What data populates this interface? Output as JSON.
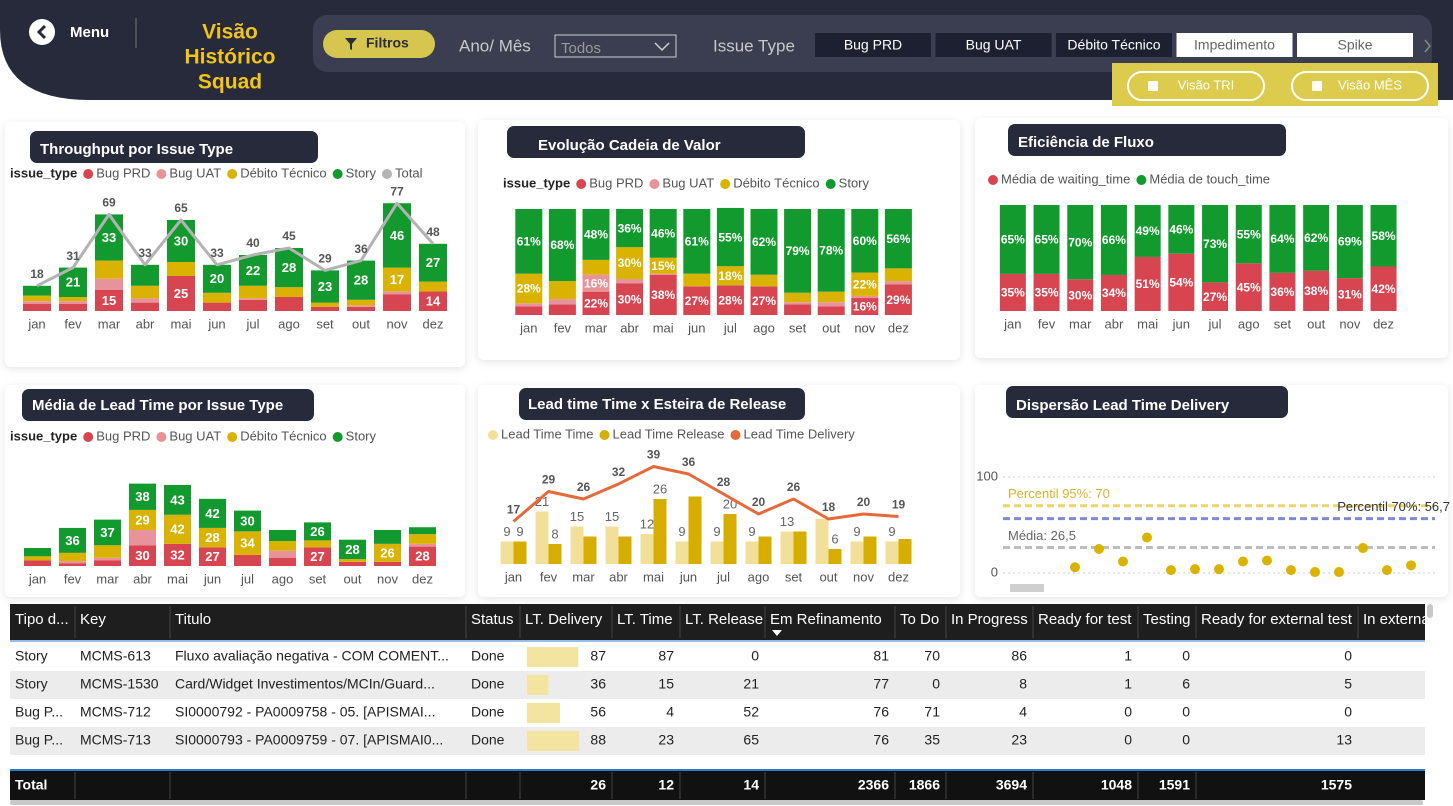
{
  "header": {
    "menu": "Menu",
    "title": [
      "Visão",
      "Histórico",
      "Squad"
    ],
    "filters": "Filtros",
    "period_label": "Ano/ Mês",
    "period_value": "Todos",
    "issue_type_label": "Issue Type",
    "issue_types": [
      "Bug PRD",
      "Bug UAT",
      "Débito Técnico",
      "Impedimento",
      "Spike"
    ],
    "issue_types_selected": [
      true,
      true,
      true,
      false,
      false
    ],
    "views": [
      "Visão TRI",
      "Visão MÊS"
    ]
  },
  "chart_data": [
    {
      "type": "bar",
      "stacked": true,
      "title": "Throughput por Issue Type",
      "legend_title": "issue_type",
      "categories": [
        "jan",
        "fev",
        "mar",
        "abr",
        "mai",
        "jun",
        "jul",
        "ago",
        "set",
        "out",
        "nov",
        "dez"
      ],
      "ylim": [
        0,
        80
      ],
      "series": [
        {
          "name": "Bug PRD",
          "color": "#d64550",
          "values": [
            5,
            5,
            15,
            6,
            25,
            6,
            8,
            10,
            3,
            3,
            12,
            14
          ],
          "value_labels": [
            null,
            null,
            "15",
            null,
            "25",
            null,
            null,
            null,
            null,
            null,
            null,
            "14"
          ]
        },
        {
          "name": "Bug UAT",
          "color": "#e8939b",
          "values": [
            2,
            2,
            8,
            3,
            0,
            0,
            1,
            0,
            0,
            1,
            2,
            0
          ]
        },
        {
          "name": "Débito Técnico",
          "color": "#d9b300",
          "values": [
            4,
            3,
            13,
            9,
            10,
            7,
            9,
            7,
            3,
            4,
            17,
            7
          ],
          "value_labels": [
            null,
            null,
            null,
            null,
            null,
            null,
            null,
            null,
            null,
            null,
            "17",
            null
          ]
        },
        {
          "name": "Story",
          "color": "#139a2e",
          "values": [
            7,
            21,
            33,
            15,
            30,
            20,
            22,
            28,
            23,
            28,
            46,
            27
          ],
          "value_labels": [
            null,
            "21",
            "33",
            null,
            "30",
            "20",
            "22",
            "28",
            "23",
            "28",
            "46",
            "27"
          ]
        },
        {
          "name": "Total",
          "color": "#b3b3b3",
          "type": "line",
          "show_labels": true,
          "values": [
            18,
            31,
            69,
            33,
            65,
            33,
            40,
            45,
            29,
            36,
            77,
            48
          ]
        }
      ]
    },
    {
      "type": "bar",
      "stacked": true,
      "title": "Evolução Cadeia de Valor",
      "legend_title": "issue_type",
      "categories": [
        "jan",
        "fev",
        "mar",
        "abr",
        "mai",
        "jun",
        "jul",
        "ago",
        "set",
        "out",
        "nov",
        "dez"
      ],
      "ylim": [
        0,
        100
      ],
      "series": [
        {
          "name": "Bug PRD",
          "color": "#d64550",
          "values": [
            8,
            10,
            22,
            30,
            38,
            27,
            28,
            27,
            10,
            8,
            16,
            29
          ],
          "value_labels": [
            null,
            null,
            "22%",
            "30%",
            "38%",
            "27%",
            "28%",
            "27%",
            null,
            null,
            "16%",
            "29%"
          ]
        },
        {
          "name": "Bug UAT",
          "color": "#e8939b",
          "values": [
            3,
            5,
            16,
            4,
            1,
            0,
            0,
            0,
            2,
            4,
            2,
            3
          ],
          "value_labels": [
            null,
            null,
            "16%",
            null,
            null,
            null,
            null,
            null,
            null,
            null,
            null,
            null
          ]
        },
        {
          "name": "Débito Técnico",
          "color": "#d9b300",
          "values": [
            28,
            17,
            14,
            30,
            15,
            12,
            18,
            11,
            9,
            10,
            22,
            12
          ],
          "value_labels": [
            "28%",
            null,
            null,
            "30%",
            "15%",
            null,
            "18%",
            null,
            null,
            null,
            "22%",
            null
          ]
        },
        {
          "name": "Story",
          "color": "#139a2e",
          "values": [
            61,
            68,
            48,
            36,
            46,
            61,
            55,
            62,
            79,
            78,
            60,
            56
          ],
          "value_labels": [
            "61%",
            "68%",
            "48%",
            "36%",
            "46%",
            "61%",
            "55%",
            "62%",
            "79%",
            "78%",
            "60%",
            "56%"
          ]
        }
      ]
    },
    {
      "type": "bar",
      "stacked": true,
      "title": "Eficiência de Fluxo",
      "categories": [
        "jan",
        "fev",
        "mar",
        "abr",
        "mai",
        "jun",
        "jul",
        "ago",
        "set",
        "out",
        "nov",
        "dez"
      ],
      "ylim": [
        0,
        100
      ],
      "series": [
        {
          "name": "Média de waiting_time",
          "color": "#d64550",
          "values": [
            35,
            35,
            30,
            34,
            51,
            54,
            27,
            45,
            36,
            38,
            31,
            42
          ],
          "value_labels": [
            "35%",
            "35%",
            "30%",
            "34%",
            "51%",
            "54%",
            "27%",
            "45%",
            "36%",
            "38%",
            "31%",
            "42%"
          ]
        },
        {
          "name": "Média de touch_time",
          "color": "#139a2e",
          "values": [
            65,
            65,
            70,
            66,
            49,
            46,
            73,
            55,
            64,
            62,
            69,
            58
          ],
          "value_labels": [
            "65%",
            "65%",
            "70%",
            "66%",
            "49%",
            "46%",
            "73%",
            "55%",
            "64%",
            "62%",
            "69%",
            "58%"
          ]
        }
      ]
    },
    {
      "type": "bar",
      "stacked": true,
      "title": "Média de Lead Time por Issue Type",
      "legend_title": "issue_type",
      "categories": [
        "jan",
        "fev",
        "mar",
        "abr",
        "mai",
        "jun",
        "jul",
        "ago",
        "set",
        "out",
        "nov",
        "dez"
      ],
      "ylim": [
        0,
        130
      ],
      "series": [
        {
          "name": "Bug PRD",
          "color": "#d64550",
          "values": [
            8,
            4,
            8,
            30,
            32,
            27,
            16,
            12,
            27,
            6,
            6,
            28
          ],
          "value_labels": [
            null,
            null,
            null,
            "30",
            "32",
            "27",
            null,
            null,
            "27",
            null,
            null,
            "28"
          ]
        },
        {
          "name": "Bug UAT",
          "color": "#e8939b",
          "values": [
            0,
            3,
            4,
            22,
            0,
            0,
            0,
            10,
            0,
            0,
            0,
            4
          ]
        },
        {
          "name": "Débito Técnico",
          "color": "#d9b300",
          "values": [
            6,
            12,
            18,
            29,
            42,
            28,
            34,
            14,
            10,
            4,
            26,
            14
          ],
          "value_labels": [
            null,
            null,
            null,
            "29",
            "42",
            "28",
            "34",
            null,
            null,
            null,
            "26",
            null
          ]
        },
        {
          "name": "Story",
          "color": "#139a2e",
          "values": [
            12,
            36,
            37,
            38,
            43,
            42,
            30,
            16,
            26,
            28,
            20,
            10
          ],
          "value_labels": [
            null,
            "36",
            "37",
            "38",
            "43",
            "42",
            "30",
            null,
            "26",
            "28",
            null,
            null
          ]
        }
      ]
    },
    {
      "type": "bar",
      "stacked": false,
      "title": "Lead time Time x Esteira de Release",
      "categories": [
        "jan",
        "fev",
        "mar",
        "abr",
        "mai",
        "jun",
        "jul",
        "ago",
        "set",
        "out",
        "nov",
        "dez"
      ],
      "ylim": [
        0,
        40
      ],
      "series": [
        {
          "name": "Lead Time Time",
          "color": "#f2e09a",
          "values": [
            9,
            21,
            15,
            15,
            12,
            9,
            9,
            9,
            13,
            18,
            9,
            9
          ],
          "value_labels": [
            "9",
            "21",
            "15",
            "15",
            "12",
            "9",
            "9",
            "9",
            "13",
            null,
            "9",
            "9"
          ]
        },
        {
          "name": "Lead Time Release",
          "color": "#d6ae00",
          "values": [
            9,
            8,
            11,
            11,
            26,
            27,
            20,
            11,
            13,
            6,
            11,
            10
          ],
          "value_labels": [
            "9",
            "8",
            null,
            null,
            "26",
            null,
            "20",
            null,
            null,
            "6",
            null,
            null
          ]
        },
        {
          "name": "Lead Time Delivery",
          "color": "#e5693a",
          "type": "line",
          "show_labels": true,
          "values": [
            17,
            29,
            26,
            32,
            39,
            36,
            28,
            20,
            26,
            18,
            20,
            19
          ]
        }
      ]
    },
    {
      "type": "scatter",
      "title": "Dispersão Lead Time Delivery",
      "x": [
        1,
        2,
        3,
        4,
        5,
        6,
        7,
        8,
        9,
        10,
        11,
        12,
        13,
        14,
        15
      ],
      "values": [
        6,
        25,
        12,
        37,
        3,
        4,
        4,
        12,
        13,
        3,
        1,
        1,
        26,
        3,
        8
      ],
      "color": "#d9b300",
      "xlim": [
        -2,
        16
      ],
      "ylim": [
        0,
        100
      ],
      "yticks": [
        0,
        100
      ],
      "grid": true,
      "reference_lines": [
        {
          "label": "Percentil 95%: 70",
          "value": 70,
          "color": "#eed36a"
        },
        {
          "label": "Percentil 70%: 56,7",
          "value": 56.7,
          "color": "#7f89d6"
        },
        {
          "label": "Média: 26,5",
          "value": 26.5,
          "color": "#bdbdbd"
        }
      ]
    }
  ],
  "table": {
    "columns": [
      "Tipo d...",
      "Key",
      "Titulo",
      "Status",
      "LT. Delivery",
      "LT. Time",
      "LT. Release",
      "Em Refinamento",
      "To Do",
      "In Progress",
      "Ready for test",
      "Testing",
      "Ready for external test",
      "In externa"
    ],
    "rows": [
      [
        "Story",
        "MCMS-613",
        "Fluxo avaliação negativa - COM COMENT...",
        "Done",
        87,
        87,
        0,
        81,
        70,
        86,
        1,
        0,
        0
      ],
      [
        "Story",
        "MCMS-1530",
        "Card/Widget Investimentos/MCIn/Guard...",
        "Done",
        36,
        15,
        21,
        77,
        0,
        8,
        1,
        6,
        5
      ],
      [
        "Bug P...",
        "MCMS-712",
        "SI0000792 -  PA0009758 -  05. [APISMAI...",
        "Done",
        56,
        4,
        52,
        76,
        71,
        4,
        0,
        0,
        0
      ],
      [
        "Bug P...",
        "MCMS-713",
        "SI0000793 -  PA0009759 - 07. [APISMAI0...",
        "Done",
        88,
        23,
        65,
        76,
        35,
        23,
        0,
        0,
        13
      ]
    ],
    "total": [
      "Total",
      null,
      null,
      null,
      26,
      12,
      14,
      2366,
      1866,
      3694,
      1048,
      1591,
      1575
    ]
  }
}
